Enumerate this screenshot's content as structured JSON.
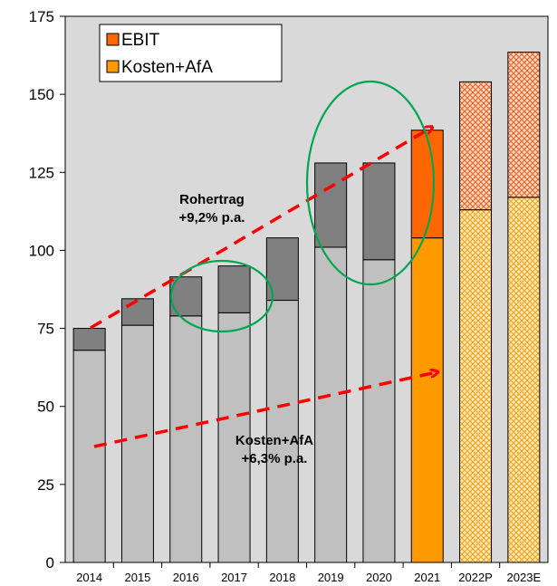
{
  "chart_data": {
    "type": "bar",
    "stacked": true,
    "categories": [
      "2014",
      "2015",
      "2016",
      "2017",
      "2018",
      "2019",
      "2020",
      "2021",
      "2022P",
      "2023E"
    ],
    "series": [
      {
        "name": "Kosten+AfA",
        "values": [
          68,
          76,
          79,
          80,
          84,
          101,
          97,
          104,
          113,
          117
        ]
      },
      {
        "name": "EBIT",
        "values": [
          7,
          8.5,
          12.5,
          15,
          20,
          27,
          31,
          34.5,
          41,
          46.5
        ]
      }
    ],
    "ylim": [
      0,
      175
    ],
    "yticks": [
      0,
      25,
      50,
      75,
      100,
      125,
      150,
      175
    ],
    "legend_position": "top-left",
    "grid": false,
    "colors": {
      "plot_background": "#d9d9d9",
      "historic_base": "#c0c0c0",
      "historic_top": "#808080",
      "ebit": "#ff6600",
      "kosten_afa": "#ff9900",
      "forecast_base": "#ffcc66",
      "forecast_top": "#ff9966",
      "trend_arrow": "#ff0000",
      "ellipse": "#00a651"
    },
    "annotations": [
      {
        "text_line1": "Rohertrag",
        "text_line2": "+9,2% p.a."
      },
      {
        "text_line1": "Kosten+AfA",
        "text_line2": "+6,3% p.a."
      }
    ]
  }
}
